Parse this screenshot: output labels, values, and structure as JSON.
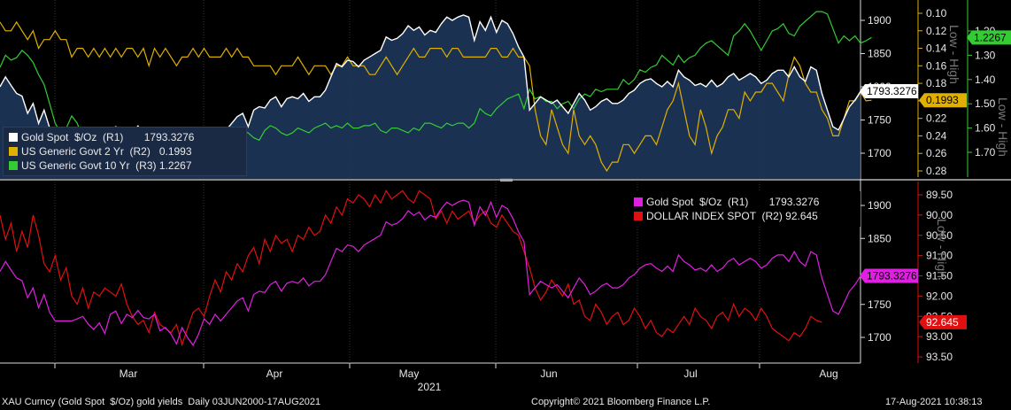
{
  "colors": {
    "gold": "#ffffff",
    "us2y": "#e0b000",
    "us10y": "#33cc33",
    "gold_lower": "#e020e0",
    "dxy": "#e01010",
    "area": "#1e3a5f",
    "bg": "#000000"
  },
  "upper_legend": [
    {
      "text": "Gold Spot  $/Oz  (R1)       1793.3276",
      "color": "#ffffff"
    },
    {
      "text": "US Generic Govt 2 Yr  (R2)   0.1993",
      "color": "#e0b000"
    },
    {
      "text": "US Generic Govt 10 Yr  (R3) 1.2267",
      "color": "#33cc33"
    }
  ],
  "lower_legend": [
    {
      "text": "Gold Spot  $/Oz  (R1)       1793.3276",
      "color": "#e020e0"
    },
    {
      "text": "DOLLAR INDEX SPOT  (R2) 92.645",
      "color": "#e01010"
    }
  ],
  "badges": {
    "gold_upper": "1793.3276",
    "us2y": "0.1993",
    "us10y": "1.2267",
    "gold_lower": "1793.3276",
    "dxy": "92.645"
  },
  "rotated_labels": {
    "upper": "Low - High",
    "upper2": "Low - High",
    "lower": "Low - High"
  },
  "x_axis": {
    "months": [
      "Mar",
      "Apr",
      "May",
      "Jun",
      "Jul",
      "Aug"
    ],
    "year": "2021"
  },
  "footer": {
    "left": "XAU Curncy (Gold Spot  $/Oz) gold yields  Daily 03JUN2000-17AUG2021",
    "center": "Copyright© 2021 Bloomberg Finance L.P.",
    "right": "17-Aug-2021 10:38:13"
  },
  "chart_data": [
    {
      "type": "area",
      "series": [
        {
          "name": "Gold Spot  $/Oz  (R1)",
          "axis": "R1",
          "values": [
            1800,
            1815,
            1802,
            1790,
            1786,
            1760,
            1775,
            1745,
            1765,
            1738,
            1725,
            1725,
            1725,
            1725,
            1728,
            1732,
            1720,
            1712,
            1722,
            1706,
            1735,
            1740,
            1721,
            1735,
            1730,
            1741,
            1730,
            1728,
            1735,
            1710,
            1715,
            1705,
            1690,
            1715,
            1700,
            1688,
            1705,
            1728,
            1720,
            1735,
            1725,
            1735,
            1745,
            1755,
            1760,
            1740,
            1765,
            1770,
            1768,
            1780,
            1785,
            1770,
            1782,
            1785,
            1782,
            1790,
            1778,
            1785,
            1785,
            1795,
            1815,
            1835,
            1830,
            1840,
            1838,
            1830,
            1840,
            1845,
            1850,
            1855,
            1875,
            1870,
            1873,
            1880,
            1892,
            1885,
            1890,
            1878,
            1885,
            1882,
            1895,
            1905,
            1900,
            1905,
            1908,
            1905,
            1870,
            1898,
            1885,
            1905,
            1882,
            1900,
            1895,
            1880,
            1860,
            1845,
            1765,
            1775,
            1785,
            1780,
            1775,
            1780,
            1770,
            1760,
            1775,
            1790,
            1780,
            1765,
            1770,
            1778,
            1782,
            1775,
            1775,
            1780,
            1790,
            1795,
            1805,
            1810,
            1812,
            1805,
            1800,
            1808,
            1800,
            1825,
            1815,
            1810,
            1802,
            1805,
            1800,
            1810,
            1800,
            1805,
            1815,
            1820,
            1810,
            1815,
            1820,
            1815,
            1805,
            1810,
            1820,
            1825,
            1825,
            1815,
            1830,
            1815,
            1808,
            1830,
            1825,
            1790,
            1765,
            1740,
            1735,
            1752,
            1770,
            1780,
            1793
          ]
        },
        {
          "name": "US Generic Govt 2 Yr  (R2)",
          "axis": "R2",
          "values": [
            0.11,
            0.12,
            0.12,
            0.11,
            0.12,
            0.13,
            0.12,
            0.14,
            0.13,
            0.13,
            0.12,
            0.13,
            0.13,
            0.15,
            0.14,
            0.14,
            0.15,
            0.14,
            0.15,
            0.14,
            0.15,
            0.14,
            0.15,
            0.14,
            0.14,
            0.15,
            0.14,
            0.16,
            0.14,
            0.15,
            0.14,
            0.15,
            0.16,
            0.15,
            0.15,
            0.14,
            0.15,
            0.14,
            0.15,
            0.15,
            0.15,
            0.14,
            0.15,
            0.14,
            0.15,
            0.15,
            0.16,
            0.16,
            0.16,
            0.16,
            0.17,
            0.16,
            0.16,
            0.16,
            0.15,
            0.16,
            0.17,
            0.16,
            0.16,
            0.16,
            0.17,
            0.16,
            0.16,
            0.15,
            0.16,
            0.16,
            0.16,
            0.17,
            0.17,
            0.16,
            0.15,
            0.16,
            0.17,
            0.16,
            0.15,
            0.14,
            0.15,
            0.15,
            0.14,
            0.14,
            0.14,
            0.15,
            0.14,
            0.14,
            0.15,
            0.15,
            0.15,
            0.15,
            0.15,
            0.14,
            0.14,
            0.15,
            0.15,
            0.14,
            0.15,
            0.15,
            0.16,
            0.21,
            0.24,
            0.25,
            0.21,
            0.23,
            0.25,
            0.26,
            0.21,
            0.24,
            0.25,
            0.24,
            0.25,
            0.27,
            0.28,
            0.27,
            0.27,
            0.25,
            0.25,
            0.26,
            0.25,
            0.24,
            0.24,
            0.25,
            0.23,
            0.21,
            0.2,
            0.18,
            0.21,
            0.24,
            0.25,
            0.21,
            0.23,
            0.26,
            0.24,
            0.23,
            0.21,
            0.21,
            0.22,
            0.19,
            0.2,
            0.19,
            0.19,
            0.18,
            0.18,
            0.19,
            0.2,
            0.17,
            0.15,
            0.16,
            0.18,
            0.19,
            0.19,
            0.21,
            0.22,
            0.24,
            0.24,
            0.22,
            0.2,
            0.2,
            0.19,
            0.2,
            0.1993
          ]
        },
        {
          "name": "US Generic Govt 10 Yr  (R3)",
          "axis": "R3",
          "values": [
            1.35,
            1.3,
            1.32,
            1.31,
            1.28,
            1.3,
            1.33,
            1.38,
            1.42,
            1.5,
            1.58,
            1.62,
            1.6,
            1.55,
            1.58,
            1.64,
            1.69,
            1.72,
            1.71,
            1.74,
            1.72,
            1.71,
            1.73,
            1.7,
            1.72,
            1.7,
            1.69,
            1.72,
            1.72,
            1.71,
            1.73,
            1.71,
            1.72,
            1.7,
            1.68,
            1.68,
            1.66,
            1.69,
            1.64,
            1.63,
            1.61,
            1.63,
            1.64,
            1.62,
            1.61,
            1.62,
            1.64,
            1.65,
            1.61,
            1.59,
            1.6,
            1.62,
            1.63,
            1.62,
            1.6,
            1.61,
            1.62,
            1.6,
            1.59,
            1.58,
            1.6,
            1.59,
            1.6,
            1.58,
            1.6,
            1.6,
            1.59,
            1.59,
            1.58,
            1.61,
            1.62,
            1.6,
            1.6,
            1.61,
            1.62,
            1.6,
            1.61,
            1.58,
            1.58,
            1.59,
            1.6,
            1.58,
            1.59,
            1.58,
            1.58,
            1.6,
            1.58,
            1.52,
            1.54,
            1.55,
            1.52,
            1.5,
            1.48,
            1.47,
            1.46,
            1.52,
            1.44,
            1.48,
            1.47,
            1.49,
            1.49,
            1.52,
            1.5,
            1.49,
            1.52,
            1.48,
            1.46,
            1.47,
            1.44,
            1.45,
            1.44,
            1.44,
            1.44,
            1.4,
            1.42,
            1.4,
            1.36,
            1.37,
            1.35,
            1.34,
            1.3,
            1.32,
            1.34,
            1.3,
            1.33,
            1.31,
            1.3,
            1.27,
            1.25,
            1.24,
            1.26,
            1.28,
            1.3,
            1.22,
            1.2,
            1.17,
            1.2,
            1.24,
            1.28,
            1.24,
            1.2,
            1.19,
            1.17,
            1.21,
            1.22,
            1.18,
            1.16,
            1.14,
            1.12,
            1.12,
            1.13,
            1.19,
            1.25,
            1.22,
            1.24,
            1.22,
            1.25,
            1.24,
            1.2267
          ]
        }
      ],
      "y_axes": {
        "R1": {
          "ticks": [
            "1900",
            "1850",
            "1800",
            "1750",
            "1700"
          ]
        },
        "R2": {
          "ticks": [
            "0.10",
            "0.12",
            "0.14",
            "0.16",
            "0.18",
            "0.20",
            "0.22",
            "0.24",
            "0.26",
            "0.28"
          ]
        },
        "R3": {
          "ticks": [
            "1.20",
            "1.30",
            "1.40",
            "1.50",
            "1.60",
            "1.70"
          ]
        }
      }
    },
    {
      "type": "line",
      "series": [
        {
          "name": "Gold Spot  $/Oz  (R1)",
          "axis": "R1",
          "values": [
            1800,
            1815,
            1802,
            1790,
            1786,
            1760,
            1775,
            1745,
            1765,
            1738,
            1725,
            1725,
            1725,
            1725,
            1728,
            1732,
            1720,
            1712,
            1722,
            1706,
            1735,
            1740,
            1721,
            1735,
            1730,
            1741,
            1730,
            1728,
            1735,
            1710,
            1715,
            1705,
            1690,
            1715,
            1700,
            1688,
            1705,
            1728,
            1720,
            1735,
            1725,
            1735,
            1745,
            1755,
            1760,
            1740,
            1765,
            1770,
            1768,
            1780,
            1785,
            1770,
            1782,
            1785,
            1782,
            1790,
            1778,
            1785,
            1785,
            1795,
            1815,
            1835,
            1830,
            1840,
            1838,
            1830,
            1840,
            1845,
            1850,
            1855,
            1875,
            1870,
            1873,
            1880,
            1892,
            1885,
            1890,
            1878,
            1885,
            1882,
            1895,
            1905,
            1900,
            1905,
            1908,
            1905,
            1870,
            1898,
            1885,
            1905,
            1882,
            1900,
            1895,
            1880,
            1860,
            1845,
            1765,
            1775,
            1785,
            1780,
            1775,
            1780,
            1770,
            1760,
            1775,
            1790,
            1780,
            1765,
            1770,
            1778,
            1782,
            1775,
            1775,
            1780,
            1790,
            1795,
            1805,
            1810,
            1812,
            1805,
            1800,
            1808,
            1800,
            1825,
            1815,
            1810,
            1802,
            1805,
            1800,
            1810,
            1800,
            1805,
            1815,
            1820,
            1810,
            1815,
            1820,
            1815,
            1805,
            1810,
            1820,
            1825,
            1825,
            1815,
            1830,
            1815,
            1808,
            1830,
            1825,
            1790,
            1765,
            1740,
            1735,
            1752,
            1770,
            1780,
            1793
          ]
        },
        {
          "name": "DOLLAR INDEX SPOT  (R2)",
          "axis": "R2",
          "values": [
            90.0,
            90.6,
            90.2,
            90.9,
            90.4,
            90.8,
            90.0,
            90.5,
            91.2,
            91.4,
            91.0,
            91.6,
            91.3,
            92.0,
            92.2,
            91.8,
            92.3,
            91.9,
            92.0,
            91.8,
            91.9,
            92.0,
            91.7,
            92.2,
            92.5,
            92.7,
            92.6,
            92.9,
            92.4,
            92.7,
            92.8,
            92.9,
            92.7,
            93.2,
            92.8,
            92.4,
            92.3,
            92.5,
            92.0,
            91.6,
            91.9,
            91.4,
            91.6,
            91.2,
            91.4,
            91.0,
            90.8,
            91.2,
            90.6,
            90.9,
            90.5,
            90.7,
            90.6,
            90.9,
            90.5,
            90.6,
            90.3,
            90.5,
            90.4,
            90.0,
            90.2,
            89.8,
            90.0,
            89.6,
            89.7,
            89.5,
            89.6,
            89.8,
            89.5,
            89.7,
            89.4,
            89.6,
            89.5,
            89.4,
            89.6,
            89.7,
            89.4,
            89.5,
            89.6,
            90.1,
            89.9,
            90.2,
            89.9,
            90.1,
            90.0,
            89.9,
            90.2,
            90.0,
            89.9,
            90.2,
            90.3,
            90.0,
            90.2,
            90.4,
            90.5,
            90.9,
            91.3,
            91.8,
            92.1,
            91.9,
            91.6,
            91.8,
            92.0,
            91.7,
            92.2,
            92.1,
            92.5,
            92.6,
            92.2,
            92.4,
            92.7,
            92.5,
            92.4,
            92.7,
            92.6,
            92.3,
            92.5,
            92.8,
            92.6,
            92.9,
            93.0,
            92.8,
            92.9,
            92.7,
            92.5,
            92.7,
            92.3,
            92.5,
            92.6,
            92.8,
            92.5,
            92.4,
            92.6,
            92.2,
            92.5,
            92.3,
            92.4,
            92.6,
            92.3,
            92.5,
            92.8,
            92.9,
            93.0,
            93.1,
            92.9,
            93.0,
            92.8,
            92.5,
            92.6,
            92.645
          ]
        }
      ],
      "y_axes": {
        "R1": {
          "ticks": [
            "1900",
            "1850",
            "1750",
            "1700"
          ]
        },
        "R2": {
          "ticks": [
            "89.50",
            "90.00",
            "90.50",
            "91.00",
            "91.50",
            "92.00",
            "92.50",
            "93.00",
            "93.50"
          ]
        }
      }
    }
  ]
}
